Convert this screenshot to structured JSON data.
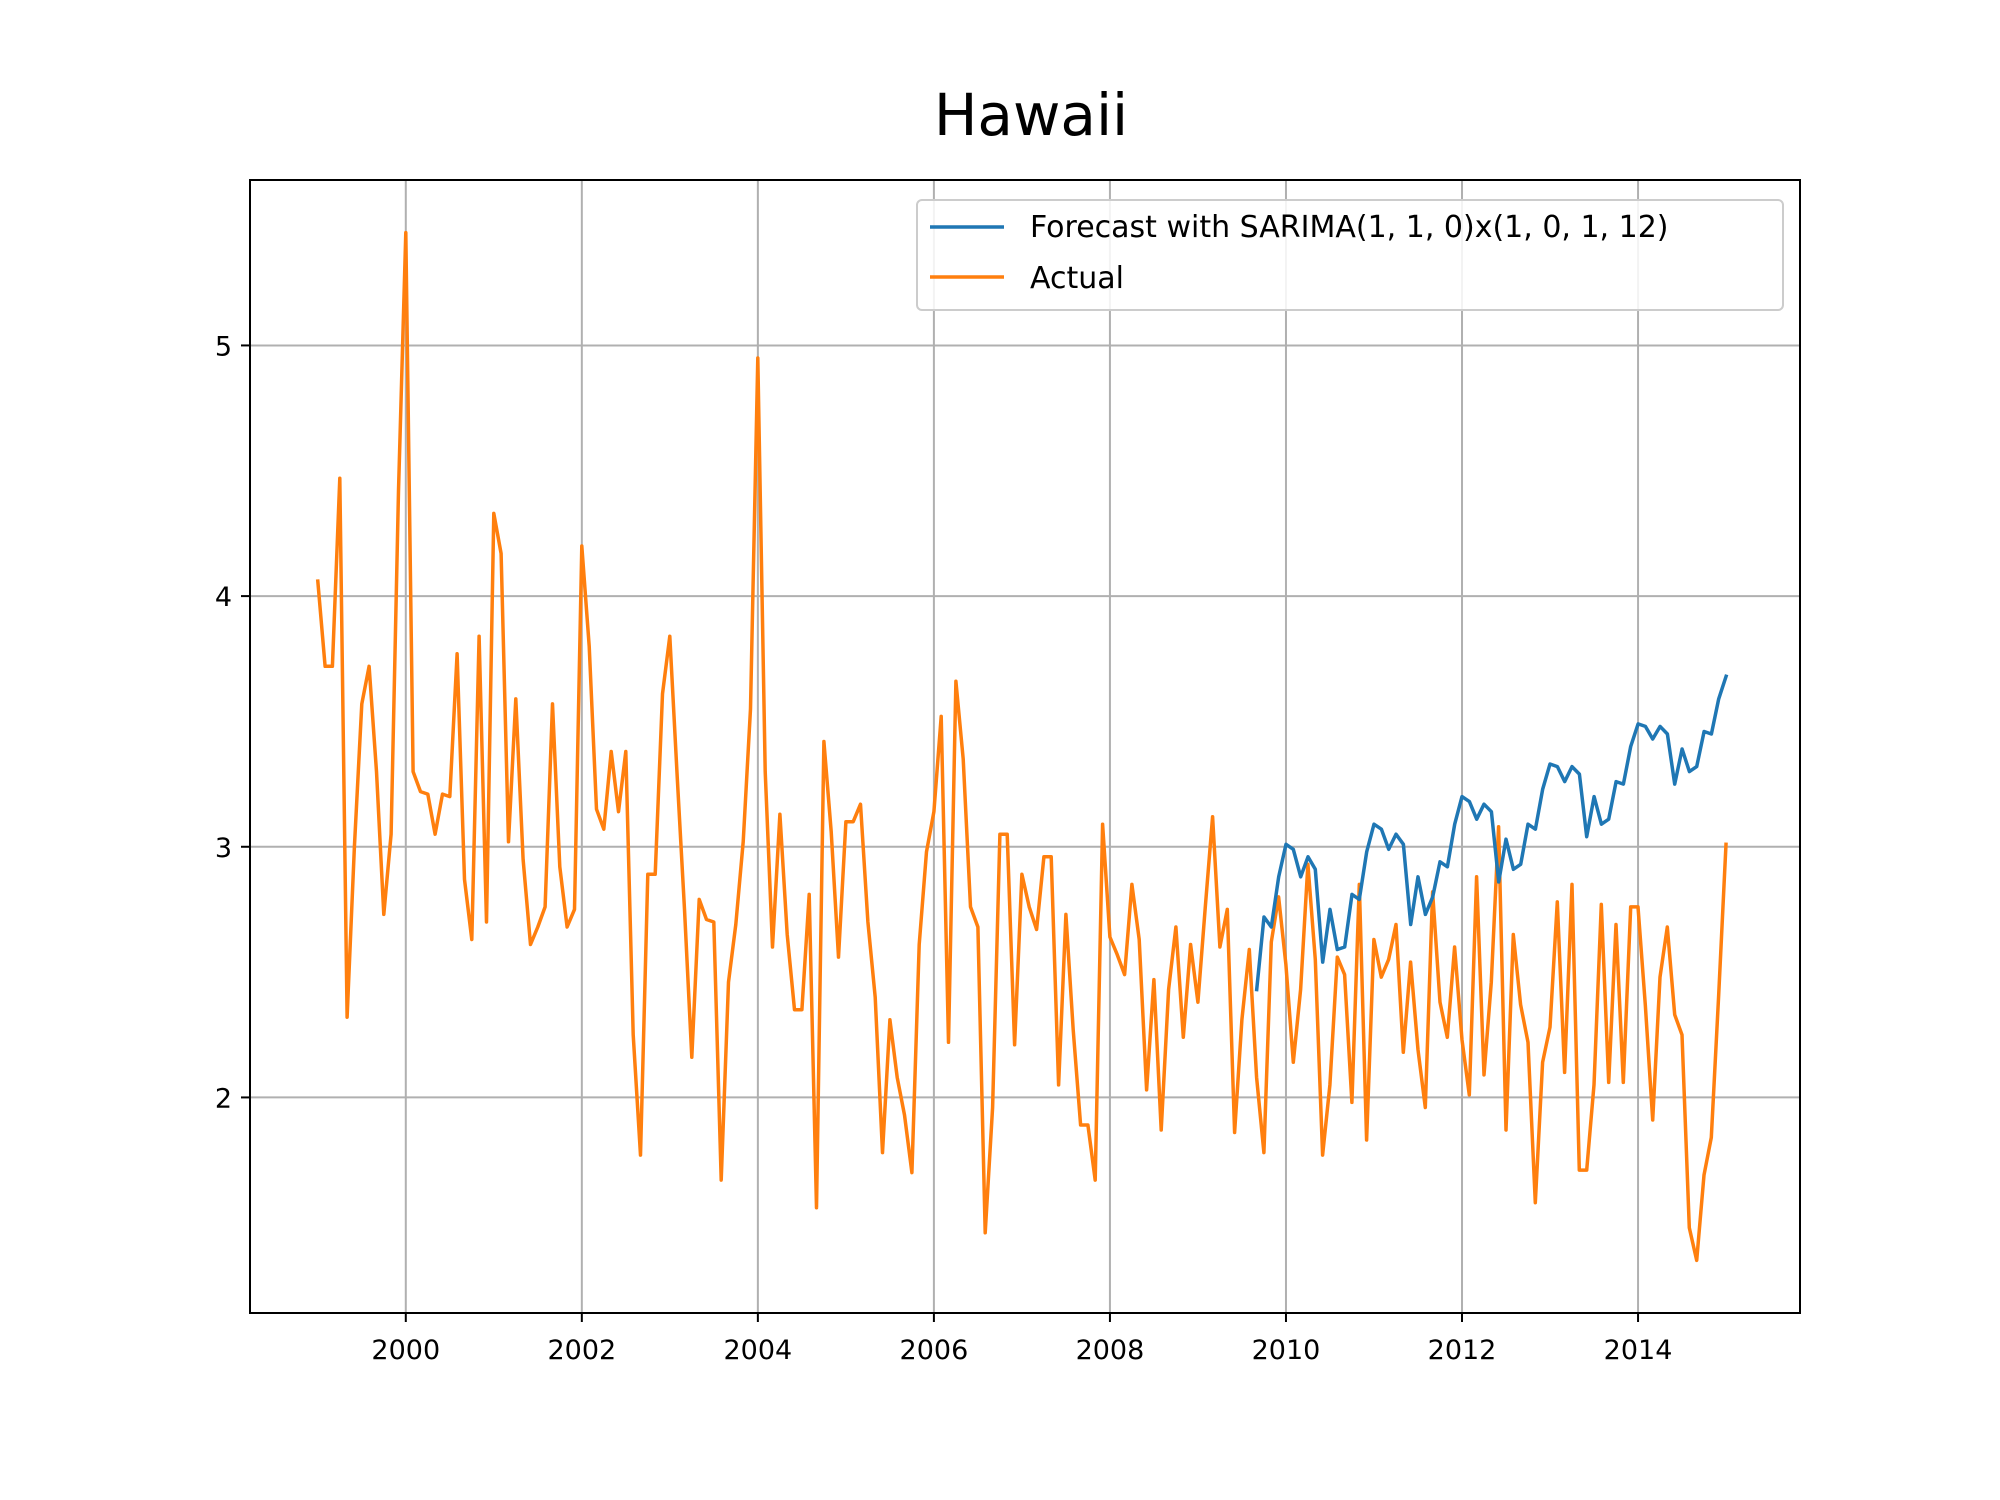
{
  "chart_data": {
    "type": "line",
    "title": "Hawaii",
    "xlabel": "",
    "ylabel": "",
    "xlim": [
      1998.23,
      2015.84
    ],
    "ylim": [
      1.14,
      5.66
    ],
    "xticks": [
      2000,
      2002,
      2004,
      2006,
      2008,
      2010,
      2012,
      2014
    ],
    "xtick_labels": [
      "2000",
      "2002",
      "2004",
      "2006",
      "2008",
      "2010",
      "2012",
      "2014"
    ],
    "yticks": [
      2,
      3,
      4,
      5
    ],
    "ytick_labels": [
      "2",
      "3",
      "4",
      "5"
    ],
    "grid": true,
    "legend_position": "upper right",
    "series": [
      {
        "name": "Forecast with SARIMA(1, 1, 0)x(1, 0, 1, 12)",
        "color": "#1f77b4",
        "start": 2009.667,
        "step": 0.08333,
        "values": [
          2.43,
          2.72,
          2.68,
          2.88,
          3.01,
          2.99,
          2.88,
          2.96,
          2.91,
          2.54,
          2.75,
          2.59,
          2.6,
          2.81,
          2.79,
          2.98,
          3.09,
          3.07,
          2.99,
          3.05,
          3.01,
          2.69,
          2.88,
          2.73,
          2.8,
          2.94,
          2.92,
          3.09,
          3.2,
          3.18,
          3.11,
          3.17,
          3.14,
          2.86,
          3.03,
          2.91,
          2.93,
          3.09,
          3.07,
          3.23,
          3.33,
          3.32,
          3.26,
          3.32,
          3.29,
          3.04,
          3.2,
          3.09,
          3.11,
          3.26,
          3.25,
          3.4,
          3.49,
          3.48,
          3.43,
          3.48,
          3.45,
          3.25,
          3.39,
          3.3,
          3.32,
          3.46,
          3.45,
          3.59,
          3.68
        ]
      },
      {
        "name": "Actual",
        "color": "#ff7f0e",
        "start": 1999.0,
        "step": 0.08333,
        "values": [
          4.06,
          3.72,
          3.72,
          4.47,
          2.32,
          3.0,
          3.57,
          3.72,
          3.3,
          2.73,
          3.05,
          4.42,
          5.45,
          3.3,
          3.22,
          3.21,
          3.05,
          3.21,
          3.2,
          3.77,
          2.87,
          2.63,
          3.84,
          2.7,
          4.33,
          4.17,
          3.02,
          3.59,
          2.95,
          2.61,
          2.68,
          2.76,
          3.57,
          2.92,
          2.68,
          2.75,
          4.2,
          3.8,
          3.15,
          3.07,
          3.38,
          3.14,
          3.38,
          2.25,
          1.77,
          2.89,
          2.89,
          3.61,
          3.84,
          3.28,
          2.75,
          2.16,
          2.79,
          2.71,
          2.7,
          1.67,
          2.46,
          2.69,
          3.02,
          3.55,
          4.95,
          3.3,
          2.6,
          3.13,
          2.65,
          2.35,
          2.35,
          2.81,
          1.56,
          3.42,
          3.06,
          2.56,
          3.1,
          3.1,
          3.17,
          2.7,
          2.4,
          1.78,
          2.31,
          2.08,
          1.93,
          1.7,
          2.61,
          2.98,
          3.14,
          3.52,
          2.22,
          3.66,
          3.35,
          2.76,
          2.68,
          1.46,
          1.96,
          3.05,
          3.05,
          2.21,
          2.89,
          2.76,
          2.67,
          2.96,
          2.96,
          2.05,
          2.73,
          2.27,
          1.89,
          1.89,
          1.67,
          3.09,
          2.64,
          2.57,
          2.49,
          2.85,
          2.63,
          2.03,
          2.47,
          1.87,
          2.43,
          2.68,
          2.24,
          2.61,
          2.38,
          2.76,
          3.12,
          2.6,
          2.75,
          1.86,
          2.31,
          2.59,
          2.08,
          1.78,
          2.62,
          2.8,
          2.53,
          2.14,
          2.43,
          2.93,
          2.55,
          1.77,
          2.05,
          2.56,
          2.49,
          1.98,
          2.85,
          1.83,
          2.63,
          2.48,
          2.55,
          2.69,
          2.18,
          2.54,
          2.19,
          1.96,
          2.82,
          2.38,
          2.24,
          2.6,
          2.23,
          2.01,
          2.88,
          2.09,
          2.46,
          3.08,
          1.87,
          2.65,
          2.37,
          2.22,
          1.58,
          2.14,
          2.28,
          2.78,
          2.1,
          2.85,
          1.71,
          1.71,
          2.05,
          2.77,
          2.06,
          2.69,
          2.06,
          2.76,
          2.76,
          2.37,
          1.91,
          2.48,
          2.68,
          2.33,
          2.25,
          1.48,
          1.35,
          1.69,
          1.84,
          2.41,
          3.01
        ]
      }
    ]
  }
}
